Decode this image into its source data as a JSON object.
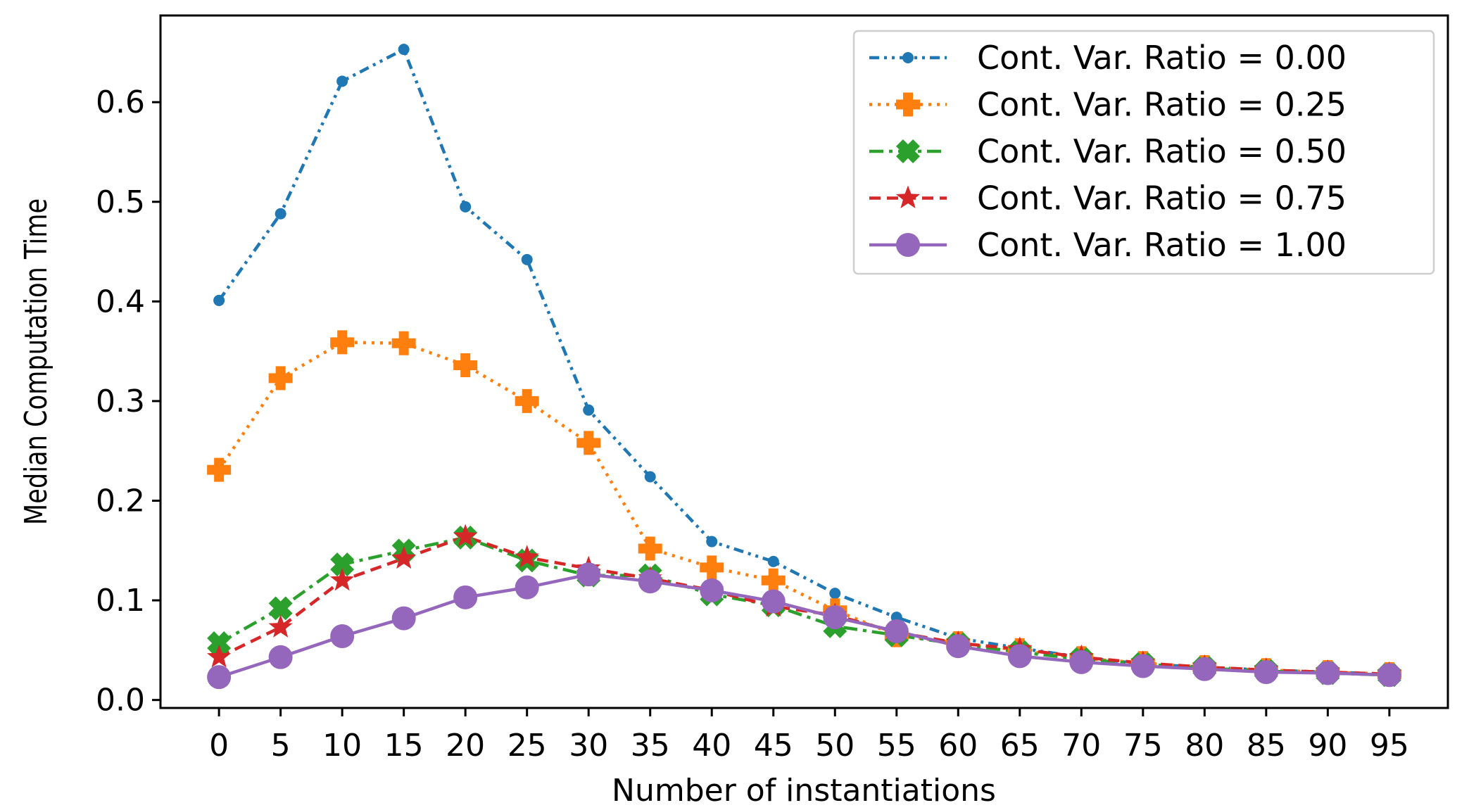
{
  "chart_data": {
    "type": "line",
    "title": "",
    "xlabel": "Number of instantiations",
    "ylabel": "Median Computation Time",
    "x": [
      0,
      5,
      10,
      15,
      20,
      25,
      30,
      35,
      40,
      45,
      50,
      55,
      60,
      65,
      70,
      75,
      80,
      85,
      90,
      95
    ],
    "xticks": [
      0,
      5,
      10,
      15,
      20,
      25,
      30,
      35,
      40,
      45,
      50,
      55,
      60,
      65,
      70,
      75,
      80,
      85,
      90,
      95
    ],
    "yticks": [
      0.0,
      0.1,
      0.2,
      0.3,
      0.4,
      0.5,
      0.6
    ],
    "ylim": [
      -0.008,
      0.687
    ],
    "xlim": [
      -4.75,
      99.75
    ],
    "grid": false,
    "legend_position": "top-right",
    "series": [
      {
        "name": "Cont. Var. Ratio = 0.00",
        "color": "#1f77b4",
        "marker": "dot",
        "line_style": "dash-dot-dot",
        "values": [
          0.401,
          0.488,
          0.621,
          0.653,
          0.495,
          0.442,
          0.291,
          0.224,
          0.159,
          0.139,
          0.107,
          0.083,
          0.062,
          0.052,
          0.043,
          0.036,
          0.033,
          0.03,
          0.028,
          0.026
        ]
      },
      {
        "name": "Cont. Var. Ratio = 0.25",
        "color": "#ff7f0e",
        "marker": "plus",
        "line_style": "dotted",
        "values": [
          0.231,
          0.323,
          0.359,
          0.358,
          0.336,
          0.3,
          0.258,
          0.152,
          0.133,
          0.12,
          0.09,
          0.065,
          0.057,
          0.05,
          0.042,
          0.037,
          0.033,
          0.03,
          0.028,
          0.026
        ]
      },
      {
        "name": "Cont. Var. Ratio = 0.50",
        "color": "#2ca02c",
        "marker": "x",
        "line_style": "dash-dot",
        "values": [
          0.057,
          0.092,
          0.136,
          0.15,
          0.163,
          0.14,
          0.125,
          0.125,
          0.106,
          0.095,
          0.074,
          0.065,
          0.056,
          0.048,
          0.041,
          0.036,
          0.032,
          0.029,
          0.027,
          0.025
        ]
      },
      {
        "name": "Cont. Var. Ratio = 0.75",
        "color": "#d62728",
        "marker": "star",
        "line_style": "dashed",
        "values": [
          0.043,
          0.073,
          0.12,
          0.142,
          0.164,
          0.143,
          0.132,
          0.122,
          0.11,
          0.094,
          0.085,
          0.068,
          0.057,
          0.051,
          0.043,
          0.037,
          0.033,
          0.03,
          0.028,
          0.026
        ]
      },
      {
        "name": "Cont. Var. Ratio = 1.00",
        "color": "#9467bd",
        "marker": "circle",
        "line_style": "solid",
        "values": [
          0.023,
          0.043,
          0.064,
          0.082,
          0.103,
          0.113,
          0.126,
          0.119,
          0.11,
          0.099,
          0.083,
          0.069,
          0.054,
          0.044,
          0.038,
          0.034,
          0.031,
          0.028,
          0.027,
          0.025
        ]
      }
    ]
  }
}
